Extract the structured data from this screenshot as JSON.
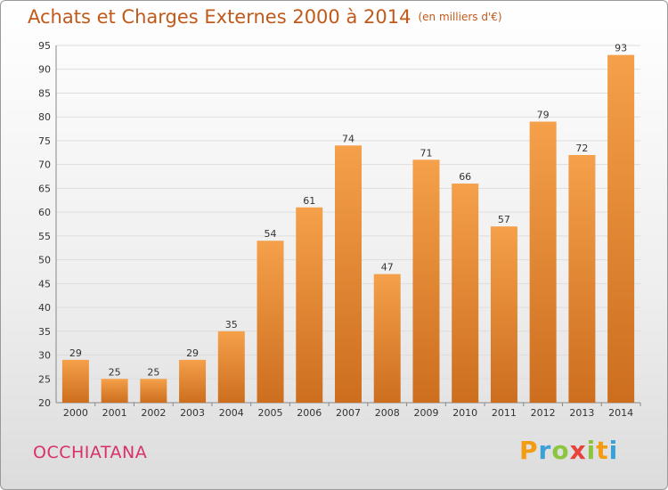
{
  "header": {
    "title": "Achats et Charges Externes 2000 à 2014",
    "unit": "(en milliers d'€)"
  },
  "footer": {
    "commune": "OCCHIATANA",
    "logo_letters": [
      "P",
      "r",
      "o",
      "x",
      "i",
      "t",
      "i"
    ],
    "logo_colors": [
      "#f39c12",
      "#3aa0d8",
      "#8cc63f",
      "#e8433a",
      "#8cc63f",
      "#f39c12",
      "#3aa0d8"
    ]
  },
  "colors": {
    "bar_top": "#f5a04a",
    "bar_bottom": "#cc6e1e",
    "text": "#333333",
    "grid": "#dddddd"
  },
  "chart_data": {
    "type": "bar",
    "categories": [
      "2000",
      "2001",
      "2002",
      "2003",
      "2004",
      "2005",
      "2006",
      "2007",
      "2008",
      "2009",
      "2010",
      "2011",
      "2012",
      "2013",
      "2014"
    ],
    "values": [
      29,
      25,
      25,
      29,
      35,
      54,
      61,
      74,
      47,
      71,
      66,
      57,
      79,
      72,
      93
    ],
    "title": "Achats et Charges Externes 2000 à 2014",
    "ylim": [
      20,
      95
    ],
    "yticks": [
      20,
      25,
      30,
      35,
      40,
      45,
      50,
      55,
      60,
      65,
      70,
      75,
      80,
      85,
      90,
      95
    ],
    "grid": true,
    "legend": "none"
  }
}
